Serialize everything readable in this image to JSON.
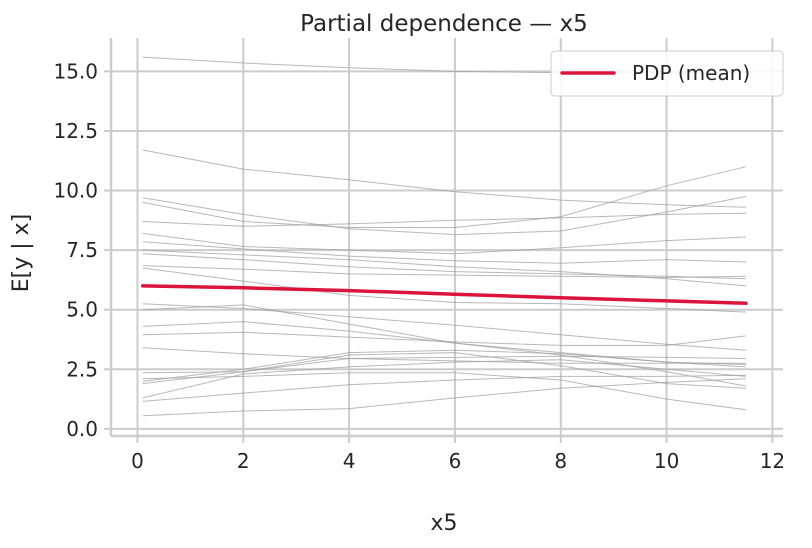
{
  "chart_data": {
    "type": "line",
    "title": "Partial dependence — x5",
    "xlabel": "x5",
    "ylabel": "E[y | x]",
    "xlim": [
      -0.5,
      12.2
    ],
    "ylim": [
      -0.3,
      16.4
    ],
    "x_ticks": [
      0,
      2,
      4,
      6,
      8,
      10,
      12
    ],
    "x_tick_labels": [
      "0",
      "2",
      "4",
      "6",
      "8",
      "10",
      "12"
    ],
    "y_ticks": [
      0.0,
      2.5,
      5.0,
      7.5,
      10.0,
      12.5,
      15.0
    ],
    "y_tick_labels": [
      "0.0",
      "2.5",
      "5.0",
      "7.5",
      "10.0",
      "12.5",
      "15.0"
    ],
    "grid": true,
    "legend": {
      "position": "top-right",
      "entries": [
        "PDP (mean)"
      ]
    },
    "colors": {
      "pdp": "#dc143c",
      "ice": "#a0a0a0",
      "grid": "#cccccc",
      "axis": "#cccccc"
    },
    "x": [
      0.1,
      2.0,
      4.0,
      6.0,
      8.0,
      10.0,
      11.5
    ],
    "series": [
      {
        "name": "PDP (mean)",
        "kind": "pdp",
        "values": [
          6.0,
          5.92,
          5.8,
          5.65,
          5.5,
          5.37,
          5.27
        ]
      },
      {
        "kind": "ice",
        "values": [
          15.6,
          15.35,
          15.15,
          15.0,
          14.95,
          14.95,
          14.95
        ]
      },
      {
        "kind": "ice",
        "values": [
          11.7,
          10.9,
          10.45,
          9.95,
          9.6,
          9.4,
          9.3
        ]
      },
      {
        "kind": "ice",
        "values": [
          9.7,
          9.0,
          8.4,
          8.15,
          8.3,
          9.1,
          9.75
        ]
      },
      {
        "kind": "ice",
        "values": [
          9.5,
          8.7,
          8.45,
          8.45,
          8.9,
          10.2,
          11.0
        ]
      },
      {
        "kind": "ice",
        "values": [
          8.7,
          8.5,
          8.6,
          8.75,
          8.85,
          9.0,
          9.05
        ]
      },
      {
        "kind": "ice",
        "values": [
          8.2,
          7.65,
          7.5,
          7.35,
          7.6,
          7.9,
          8.05
        ]
      },
      {
        "kind": "ice",
        "values": [
          7.85,
          7.55,
          7.25,
          7.05,
          6.95,
          7.1,
          7.0
        ]
      },
      {
        "kind": "ice",
        "values": [
          7.5,
          7.3,
          7.1,
          6.8,
          6.6,
          6.3,
          6.0
        ]
      },
      {
        "kind": "ice",
        "values": [
          7.35,
          7.1,
          6.8,
          6.6,
          6.5,
          6.4,
          6.3
        ]
      },
      {
        "kind": "ice",
        "values": [
          6.85,
          6.7,
          6.5,
          6.45,
          6.4,
          6.35,
          6.4
        ]
      },
      {
        "kind": "ice",
        "values": [
          6.75,
          6.2,
          5.6,
          5.3,
          5.25,
          5.05,
          4.9
        ]
      },
      {
        "kind": "ice",
        "values": [
          5.25,
          5.05,
          4.7,
          4.35,
          3.95,
          3.55,
          3.3
        ]
      },
      {
        "kind": "ice",
        "values": [
          5.0,
          5.2,
          4.4,
          3.6,
          3.2,
          2.8,
          2.6
        ]
      },
      {
        "kind": "ice",
        "values": [
          4.3,
          4.5,
          4.1,
          3.6,
          3.1,
          2.4,
          1.8
        ]
      },
      {
        "kind": "ice",
        "values": [
          3.95,
          4.05,
          3.85,
          3.65,
          3.5,
          3.5,
          3.9
        ]
      },
      {
        "kind": "ice",
        "values": [
          3.4,
          3.15,
          2.95,
          2.85,
          2.75,
          2.75,
          2.75
        ]
      },
      {
        "kind": "ice",
        "values": [
          2.35,
          2.4,
          3.1,
          3.2,
          2.65,
          1.9,
          1.7
        ]
      },
      {
        "kind": "ice",
        "values": [
          2.0,
          2.5,
          3.2,
          3.3,
          3.15,
          2.8,
          2.7
        ]
      },
      {
        "kind": "ice",
        "values": [
          1.9,
          2.4,
          2.95,
          3.0,
          3.05,
          3.0,
          2.95
        ]
      },
      {
        "kind": "ice",
        "values": [
          1.3,
          2.3,
          2.6,
          2.8,
          2.9,
          2.5,
          2.2
        ]
      },
      {
        "kind": "ice",
        "values": [
          1.15,
          1.5,
          1.85,
          2.05,
          2.2,
          2.2,
          2.25
        ]
      },
      {
        "kind": "ice",
        "values": [
          0.55,
          0.75,
          0.85,
          1.3,
          1.7,
          1.95,
          2.1
        ]
      },
      {
        "kind": "ice",
        "values": [
          2.1,
          2.2,
          2.35,
          2.35,
          2.05,
          1.25,
          0.8
        ]
      }
    ]
  }
}
